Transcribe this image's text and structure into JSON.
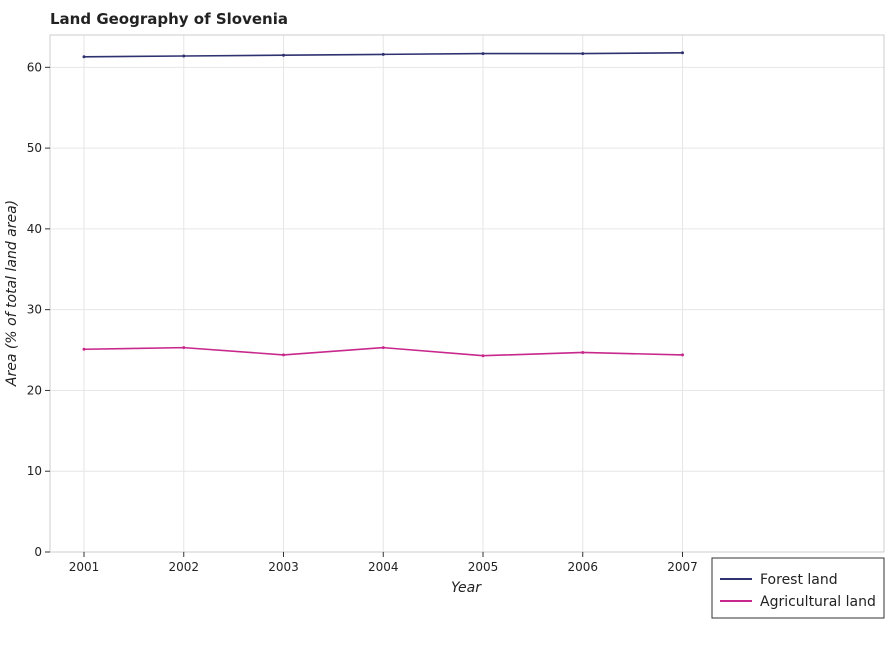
{
  "chart_data": {
    "type": "line",
    "title": "Land Geography of Slovenia",
    "xlabel": "Year",
    "ylabel": "Area (% of total land area)",
    "categories": [
      "2001",
      "2002",
      "2003",
      "2004",
      "2005",
      "2006",
      "2007"
    ],
    "ylim": [
      0,
      64
    ],
    "yticks": [
      0,
      10,
      20,
      30,
      40,
      50,
      60
    ],
    "grid": true,
    "legend_position": "bottom-right",
    "series": [
      {
        "name": "Forest land",
        "color": "#2f3270",
        "values": [
          61.3,
          61.4,
          61.5,
          61.6,
          61.7,
          61.7,
          61.8
        ]
      },
      {
        "name": "Agricultural land",
        "color": "#c8288c",
        "values": [
          25.1,
          25.3,
          24.4,
          25.3,
          24.3,
          24.7,
          24.4
        ]
      }
    ]
  }
}
